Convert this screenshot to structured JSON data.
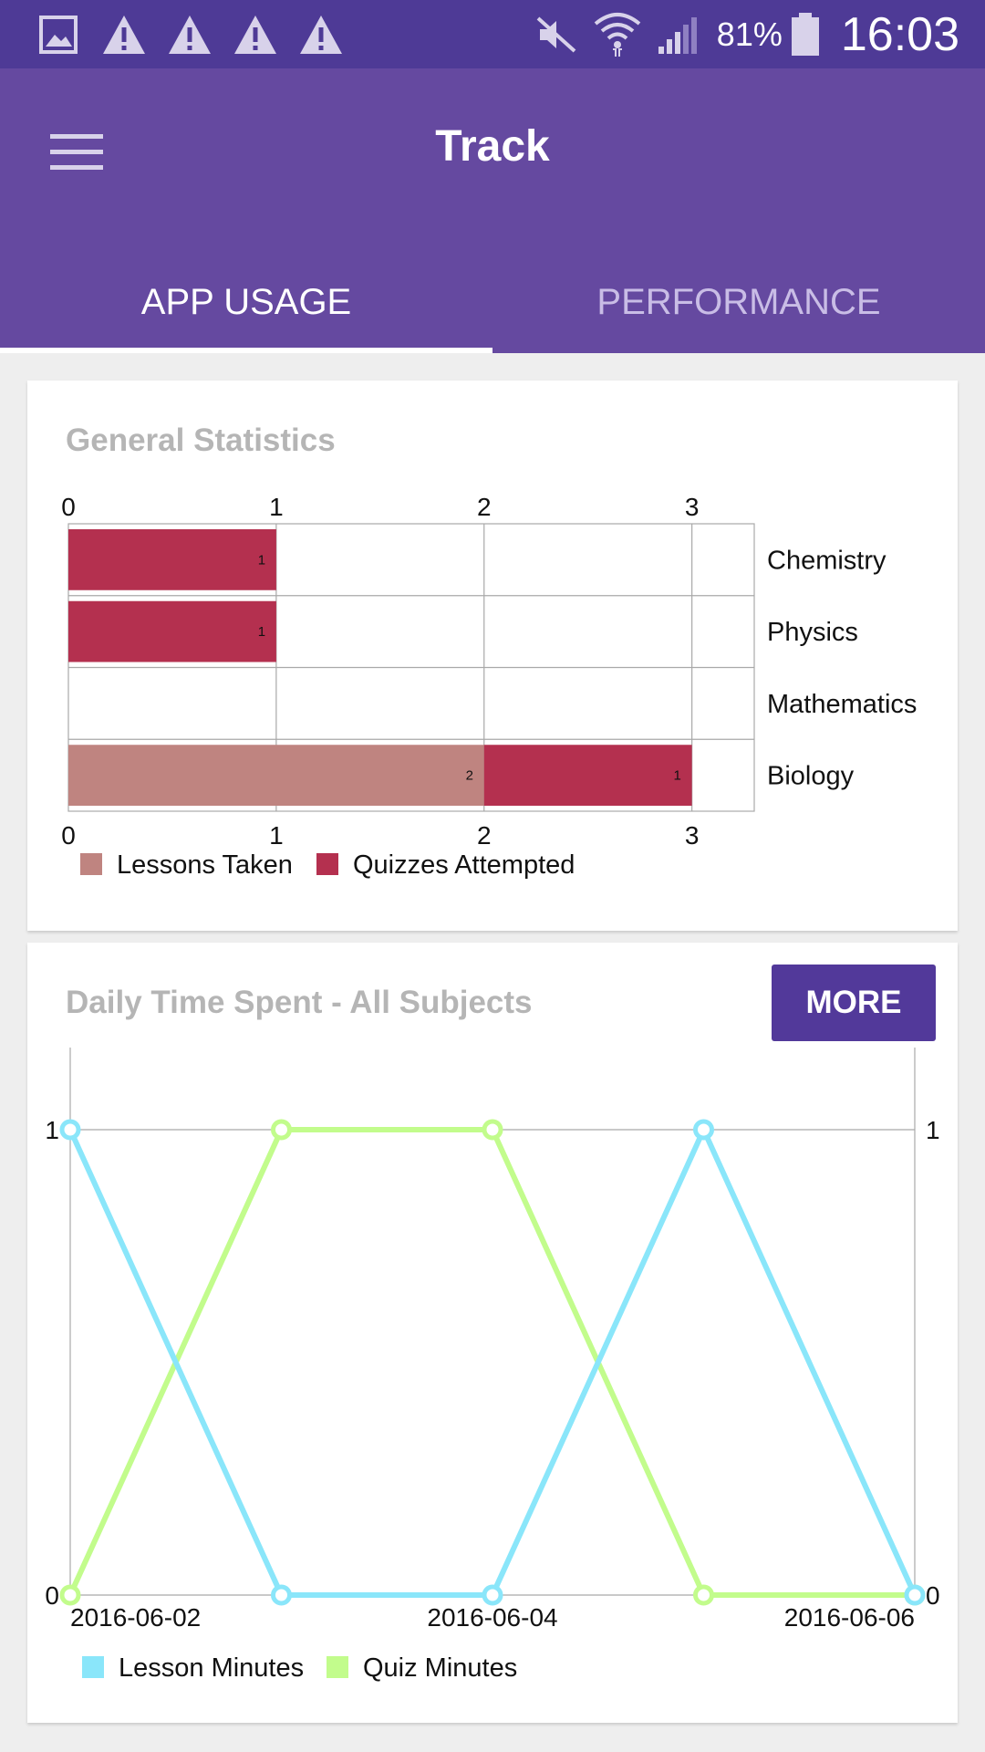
{
  "status_bar": {
    "notification_icons": [
      "gallery-icon",
      "warning-icon",
      "warning-icon",
      "warning-icon",
      "warning-icon"
    ],
    "system_icons": [
      "mute-icon",
      "wifi-icon",
      "signal-icon"
    ],
    "battery_percent": "81%",
    "clock": "16:03"
  },
  "app_bar": {
    "title": "Track",
    "tabs": [
      {
        "label": "APP USAGE",
        "active": true
      },
      {
        "label": "PERFORMANCE",
        "active": false
      }
    ]
  },
  "general_statistics": {
    "title": "General Statistics",
    "chart_data": {
      "type": "bar",
      "orientation": "horizontal",
      "stacked": true,
      "categories": [
        "Chemistry",
        "Physics",
        "Mathematics",
        "Biology"
      ],
      "series": [
        {
          "name": "Lessons Taken",
          "color": "#bf8480",
          "values": [
            0,
            0,
            0,
            2
          ]
        },
        {
          "name": "Quizzes Attempted",
          "color": "#b4304f",
          "values": [
            1,
            1,
            0,
            1
          ]
        }
      ],
      "xlim": [
        0,
        3.3
      ],
      "xticks": [
        0,
        1,
        2,
        3
      ],
      "grid": true,
      "legend": "bottom-left"
    }
  },
  "daily_time": {
    "title": "Daily Time Spent - All Subjects",
    "more_label": "MORE",
    "chart_data": {
      "type": "line",
      "x": [
        "2016-06-02",
        "2016-06-03",
        "2016-06-04",
        "2016-06-05",
        "2016-06-06"
      ],
      "x_tick_labels": [
        "2016-06-02",
        "2016-06-04",
        "2016-06-06"
      ],
      "series": [
        {
          "name": "Lesson Minutes",
          "color": "#8ae6fa",
          "values": [
            1,
            0,
            0,
            1,
            0
          ]
        },
        {
          "name": "Quiz Minutes",
          "color": "#c2fc8c",
          "values": [
            0,
            1,
            1,
            0,
            0
          ]
        }
      ],
      "ylim": [
        0,
        1
      ],
      "yticks": [
        0,
        1
      ],
      "grid": true,
      "legend": "bottom-left"
    }
  }
}
